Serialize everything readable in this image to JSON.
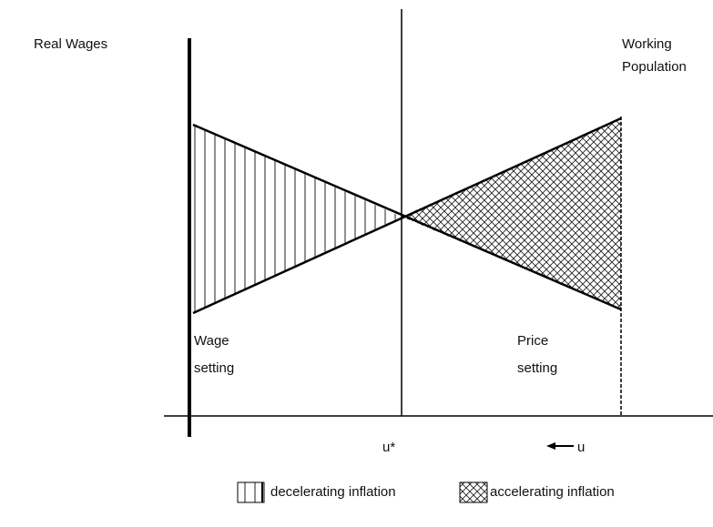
{
  "axis_labels": {
    "y": "Real Wages",
    "top_right": [
      "Working",
      "Population"
    ]
  },
  "curves": {
    "wage": [
      "Wage",
      "setting"
    ],
    "price": [
      "Price",
      "setting"
    ]
  },
  "markers": {
    "u_star": "u*",
    "u": "u"
  },
  "legend": [
    {
      "label": "decelerating inflation"
    },
    {
      "label": "accelerating inflation"
    }
  ]
}
